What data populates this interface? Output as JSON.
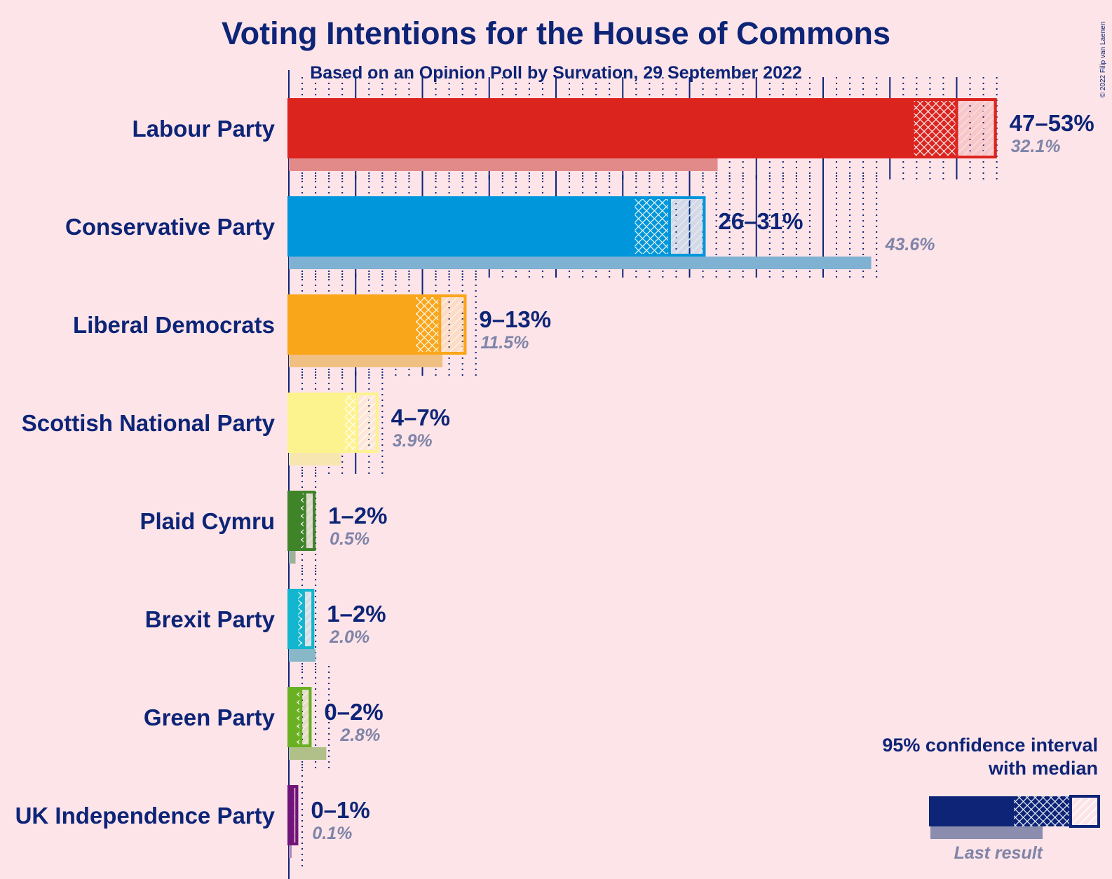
{
  "title": "Voting Intentions for the House of Commons",
  "subtitle": "Based on an Opinion Poll by Survation, 29 September 2022",
  "copyright": "© 2022 Filip van Laenen",
  "legend": {
    "line1": "95% confidence interval",
    "line2": "with median",
    "last_result": "Last result",
    "color_bar": "#0d2477",
    "color_last": "#8a8dad"
  },
  "chart_data": {
    "type": "bar",
    "orientation": "horizontal",
    "xlim": [
      0,
      53
    ],
    "unit": "%",
    "series": [
      {
        "name": "Labour Party",
        "color": "#dc241f",
        "last_color": "#e28a8a",
        "lo": 46.7,
        "median": 50.0,
        "hi": 53.0,
        "range_label": "47–53%",
        "last": 32.1,
        "last_label": "32.1%"
      },
      {
        "name": "Conservative Party",
        "color": "#0096db",
        "last_color": "#7fb1d3",
        "lo": 25.8,
        "median": 28.5,
        "hi": 31.2,
        "range_label": "26–31%",
        "last": 43.6,
        "last_label": "43.6%"
      },
      {
        "name": "Liberal Democrats",
        "color": "#faa61a",
        "last_color": "#f0bf82",
        "lo": 9.4,
        "median": 11.3,
        "hi": 13.3,
        "range_label": "9–13%",
        "last": 11.5,
        "last_label": "11.5%"
      },
      {
        "name": "Scottish National Party",
        "color": "#fdf38e",
        "last_color": "#f8e6b0",
        "lo": 4.1,
        "median": 5.1,
        "hi": 6.7,
        "range_label": "4–7%",
        "last": 3.9,
        "last_label": "3.9%"
      },
      {
        "name": "Plaid Cymru",
        "color": "#3f8428",
        "last_color": "#9eb09a",
        "lo": 0.8,
        "median": 1.2,
        "hi": 2.0,
        "range_label": "1–2%",
        "last": 0.5,
        "last_label": "0.5%"
      },
      {
        "name": "Brexit Party",
        "color": "#12b6cf",
        "last_color": "#88b8c8",
        "lo": 0.6,
        "median": 1.1,
        "hi": 1.9,
        "range_label": "1–2%",
        "last": 2.0,
        "last_label": "2.0%"
      },
      {
        "name": "Green Party",
        "color": "#6ab023",
        "last_color": "#b0c088",
        "lo": 0.5,
        "median": 0.9,
        "hi": 1.7,
        "range_label": "0–2%",
        "last": 2.8,
        "last_label": "2.8%"
      },
      {
        "name": "UK Independence Party",
        "color": "#70147a",
        "last_color": "#b08ab5",
        "lo": 0.1,
        "median": 0.3,
        "hi": 0.7,
        "range_label": "0–1%",
        "last": 0.1,
        "last_label": "0.1%"
      }
    ]
  }
}
